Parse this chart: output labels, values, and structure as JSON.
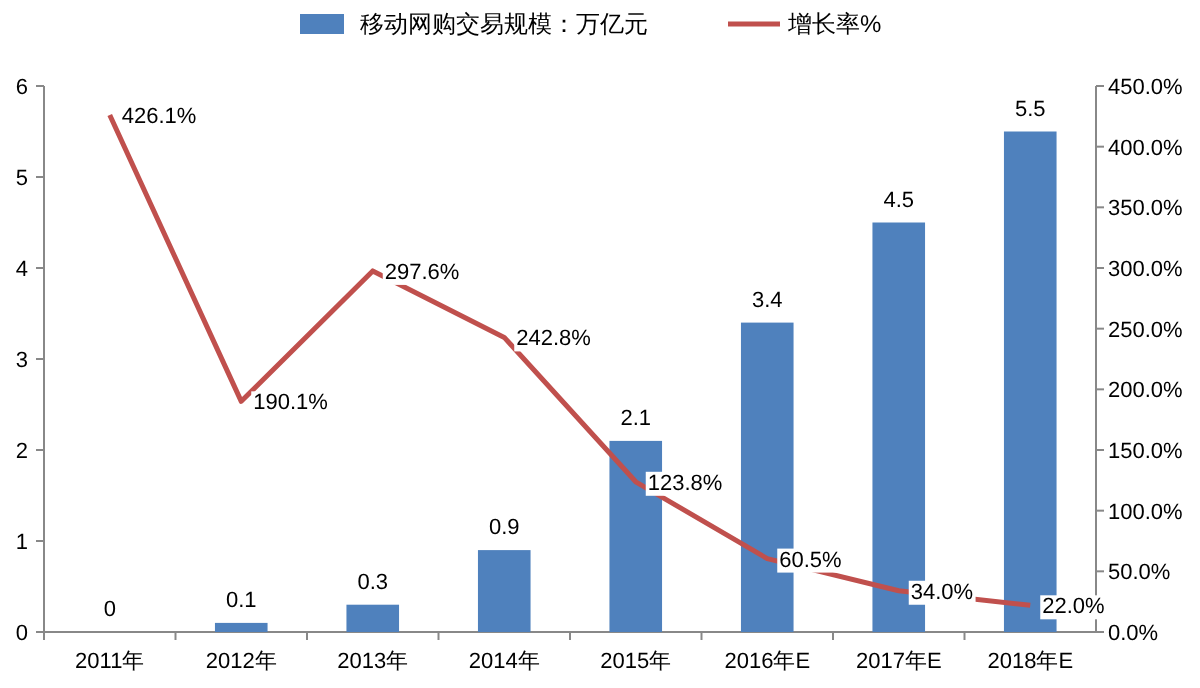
{
  "chart_data": {
    "type": "bar",
    "categories": [
      "2011年",
      "2012年",
      "2013年",
      "2014年",
      "2015年",
      "2016年E",
      "2017年E",
      "2018年E"
    ],
    "series": [
      {
        "name": "移动网购交易规模：万亿元",
        "color": "#4f81bd",
        "values": [
          0,
          0.1,
          0.3,
          0.9,
          2.1,
          3.4,
          4.5,
          5.5
        ],
        "data_labels": true
      },
      {
        "name": "增长率%",
        "type": "line",
        "axis": "y2",
        "color": "#c0504d",
        "values": [
          426.1,
          190.1,
          297.6,
          242.8,
          123.8,
          60.5,
          34.0,
          22.0
        ],
        "value_labels": [
          "426.1%",
          "190.1%",
          "297.6%",
          "242.8%",
          "123.8%",
          "60.5%",
          "34.0%",
          "22.0%"
        ]
      }
    ],
    "ylim": [
      0,
      6
    ],
    "yticks": [
      0,
      1,
      2,
      3,
      4,
      5,
      6
    ],
    "y2lim": [
      0,
      450
    ],
    "y2ticks": [
      {
        "value": 0,
        "label": "0.0%"
      },
      {
        "value": 50,
        "label": "50.0%"
      },
      {
        "value": 100,
        "label": "100.0%"
      },
      {
        "value": 150,
        "label": "150.0%"
      },
      {
        "value": 200,
        "label": "200.0%"
      },
      {
        "value": 250,
        "label": "250.0%"
      },
      {
        "value": 300,
        "label": "300.0%"
      },
      {
        "value": 350,
        "label": "350.0%"
      },
      {
        "value": 400,
        "label": "400.0%"
      },
      {
        "value": 450,
        "label": "450.0%"
      }
    ],
    "legend": "top",
    "grid": false,
    "marker": "none",
    "line_style": "solid"
  }
}
